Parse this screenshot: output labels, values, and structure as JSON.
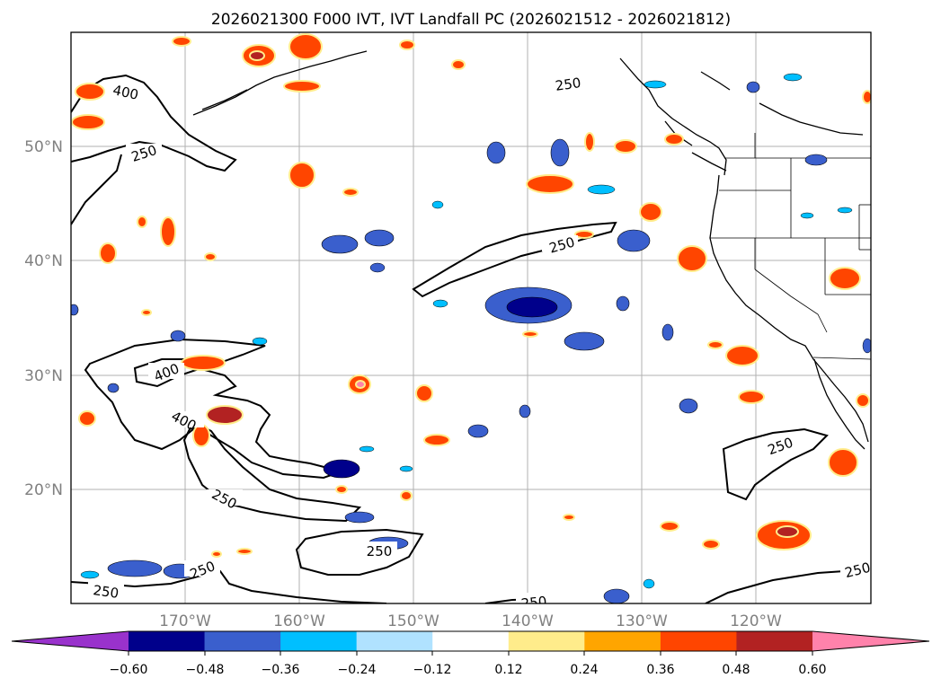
{
  "title": "2026021300 F000 IVT, IVT Landfall PC (2026021512 - 2026021812)",
  "lat_labels": [
    "50°N",
    "40°N",
    "30°N",
    "20°N"
  ],
  "lon_labels": [
    "170°W",
    "160°W",
    "150°W",
    "140°W",
    "130°W",
    "120°W"
  ],
  "contour_labels": [
    "400",
    "250",
    "250",
    "400",
    "400",
    "250",
    "250",
    "250",
    "250",
    "250",
    "250",
    "250",
    "250"
  ],
  "colorbar": {
    "ticks": [
      "−0.60",
      "−0.48",
      "−0.36",
      "−0.24",
      "−0.12",
      "0.12",
      "0.24",
      "0.36",
      "0.48",
      "0.60"
    ],
    "colors": [
      "#9932cc",
      "#00008b",
      "#3a5fcd",
      "#00bfff",
      "#b0e2ff",
      "#ffffff",
      "#ffec8b",
      "#ffa500",
      "#ff4500",
      "#b22222",
      "#ff82ab"
    ]
  }
}
